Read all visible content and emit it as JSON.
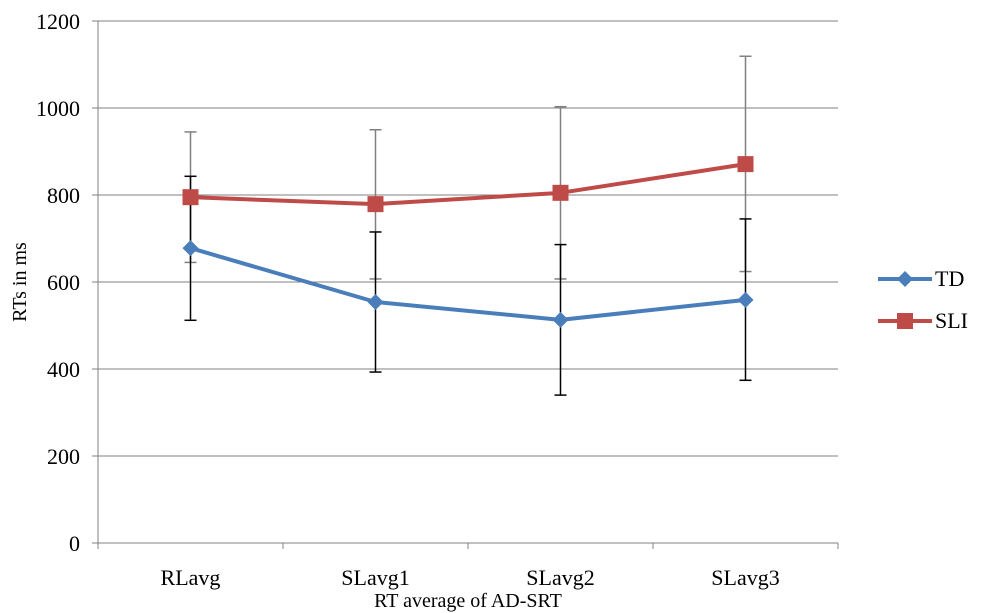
{
  "chart_data": {
    "type": "line",
    "title": "",
    "xlabel": "RT average of AD-SRT",
    "ylabel": "RTs in ms",
    "categories": [
      "RLavg",
      "SLavg1",
      "SLavg2",
      "SLavg3"
    ],
    "ylim": [
      0,
      1200
    ],
    "yticks": [
      0,
      200,
      400,
      600,
      800,
      1000,
      1200
    ],
    "grid": true,
    "legend_position": "right",
    "series": [
      {
        "name": "TD",
        "color": "#4a7ebb",
        "marker": "diamond",
        "values": [
          678,
          554,
          513,
          559
        ],
        "error_low": [
          512,
          393,
          340,
          374
        ],
        "error_high": [
          843,
          715,
          686,
          745
        ],
        "error_color": "#000000"
      },
      {
        "name": "SLI",
        "color": "#be4b48",
        "marker": "square",
        "values": [
          795,
          779,
          805,
          871
        ],
        "error_low": [
          645,
          607,
          607,
          624
        ],
        "error_high": [
          945,
          950,
          1003,
          1119
        ],
        "error_color": "#808080"
      }
    ]
  }
}
